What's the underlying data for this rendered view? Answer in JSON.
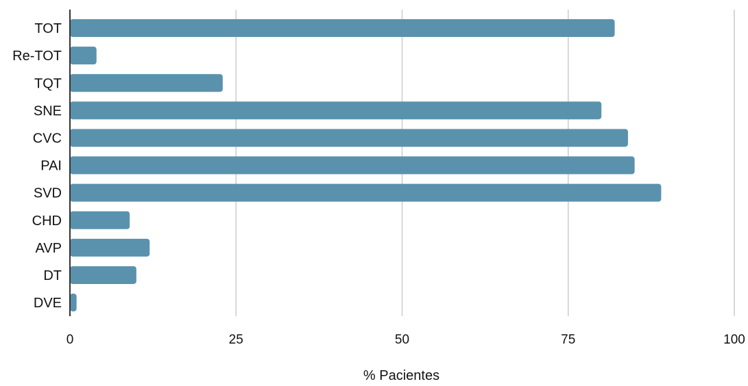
{
  "chart_data": {
    "type": "bar",
    "orientation": "horizontal",
    "categories": [
      "TOT",
      "Re-TOT",
      "TQT",
      "SNE",
      "CVC",
      "PAI",
      "SVD",
      "CHD",
      "AVP",
      "DT",
      "DVE"
    ],
    "values": [
      82,
      4,
      23,
      80,
      84,
      85,
      89,
      9,
      12,
      10,
      1
    ],
    "xlabel": "% Pacientes",
    "ylabel": "",
    "xlim": [
      0,
      100
    ],
    "xticks": [
      "0",
      "25",
      "50",
      "75",
      "100"
    ],
    "grid": "vertical",
    "legend": "none",
    "bar_color": "#5a92ad",
    "grid_color": "#cccccc",
    "axis_color": "#333333"
  }
}
